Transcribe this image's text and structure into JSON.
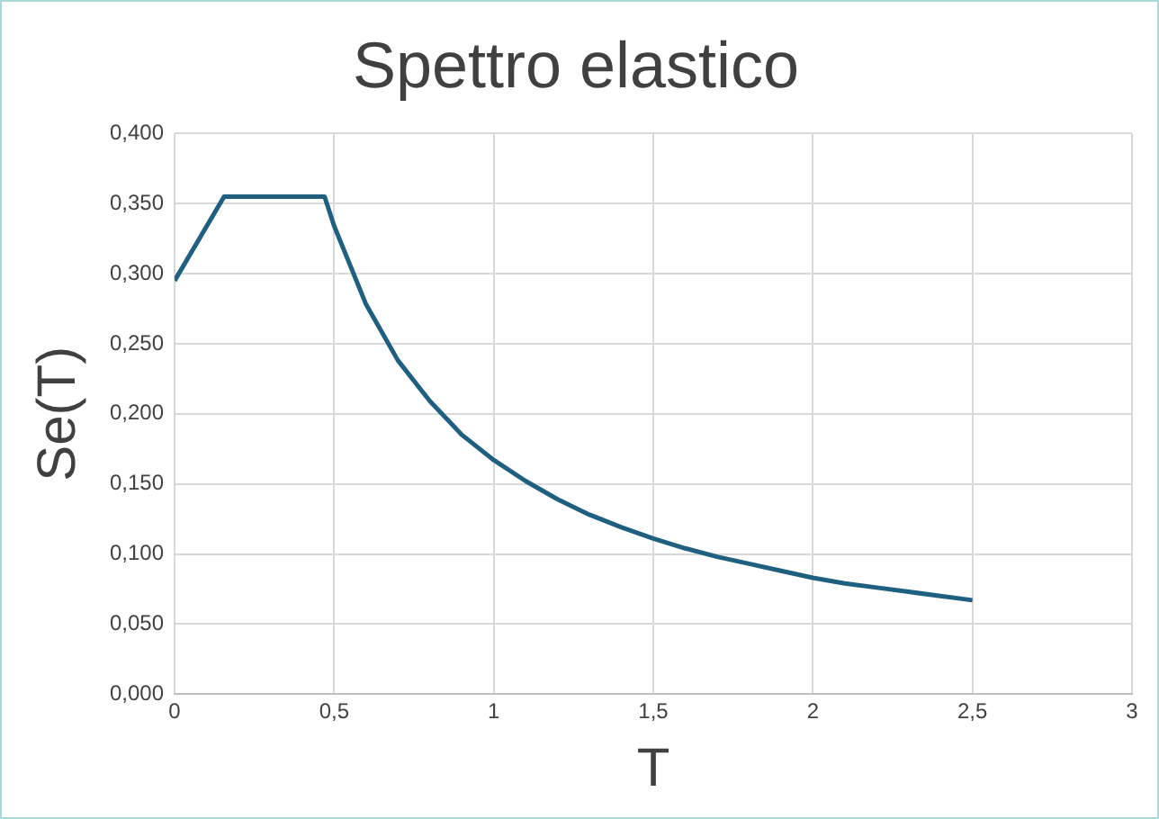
{
  "chart_data": {
    "type": "line",
    "title": "Spettro elastico",
    "xlabel": "T",
    "ylabel": "Se(T)",
    "series": [
      {
        "color": "#1f5f80",
        "x": [
          0,
          0.155,
          0.47,
          0.5,
          0.6,
          0.7,
          0.8,
          0.9,
          1.0,
          1.1,
          1.2,
          1.3,
          1.4,
          1.5,
          1.6,
          1.7,
          1.8,
          1.9,
          2.0,
          2.1,
          2.2,
          2.3,
          2.4,
          2.5
        ],
        "values": [
          0.295,
          0.355,
          0.355,
          0.334,
          0.278,
          0.238,
          0.209,
          0.185,
          0.167,
          0.152,
          0.139,
          0.128,
          0.119,
          0.111,
          0.104,
          0.098,
          0.093,
          0.088,
          0.083,
          0.079,
          0.076,
          0.073,
          0.07,
          0.067
        ]
      }
    ],
    "xlim": [
      0,
      3
    ],
    "xticks": [
      0,
      {
        "value": 0.5,
        "label": "0,5"
      },
      1,
      {
        "value": 1.5,
        "label": "1,5"
      },
      2,
      {
        "value": 2.5,
        "label": "2,5"
      },
      3
    ],
    "ylim": [
      0,
      0.4
    ],
    "yticks": [
      {
        "value": 0,
        "label": "0,000"
      },
      {
        "value": 0.05,
        "label": "0,050"
      },
      {
        "value": 0.1,
        "label": "0,100"
      },
      {
        "value": 0.15,
        "label": "0,150"
      },
      {
        "value": 0.2,
        "label": "0,200"
      },
      {
        "value": 0.25,
        "label": "0,250"
      },
      {
        "value": 0.3,
        "label": "0,300"
      },
      {
        "value": 0.35,
        "label": "0,350"
      },
      {
        "value": 0.4,
        "label": "0,400"
      }
    ],
    "grid": true,
    "legend": false,
    "marker": "none",
    "line_style": "solid"
  }
}
